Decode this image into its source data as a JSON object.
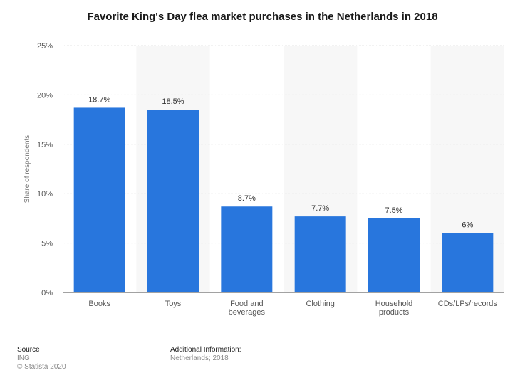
{
  "chart_data": {
    "type": "bar",
    "title": "Favorite King's Day flea market purchases in the Netherlands in 2018",
    "ylabel": "Share of respondents",
    "xlabel": "",
    "categories": [
      "Books",
      "Toys",
      "Food and beverages",
      "Clothing",
      "Household products",
      "CDs/LPs/records"
    ],
    "category_lines": [
      [
        "Books"
      ],
      [
        "Toys"
      ],
      [
        "Food and",
        "beverages"
      ],
      [
        "Clothing"
      ],
      [
        "Household",
        "products"
      ],
      [
        "CDs/LPs/records"
      ]
    ],
    "values": [
      18.7,
      18.5,
      8.7,
      7.7,
      7.5,
      6
    ],
    "value_labels": [
      "18.7%",
      "18.5%",
      "8.7%",
      "7.7%",
      "7.5%",
      "6%"
    ],
    "ylim": [
      0,
      25
    ],
    "yticks": [
      0,
      5,
      10,
      15,
      20,
      25
    ],
    "ytick_labels": [
      "0%",
      "5%",
      "10%",
      "15%",
      "20%",
      "25%"
    ],
    "grid": true,
    "bar_color": "#2876dd"
  },
  "footer": {
    "source_heading": "Source",
    "source_name": "ING",
    "copyright": "© Statista 2020",
    "info_heading": "Additional Information:",
    "info_text": "Netherlands; 2018"
  }
}
